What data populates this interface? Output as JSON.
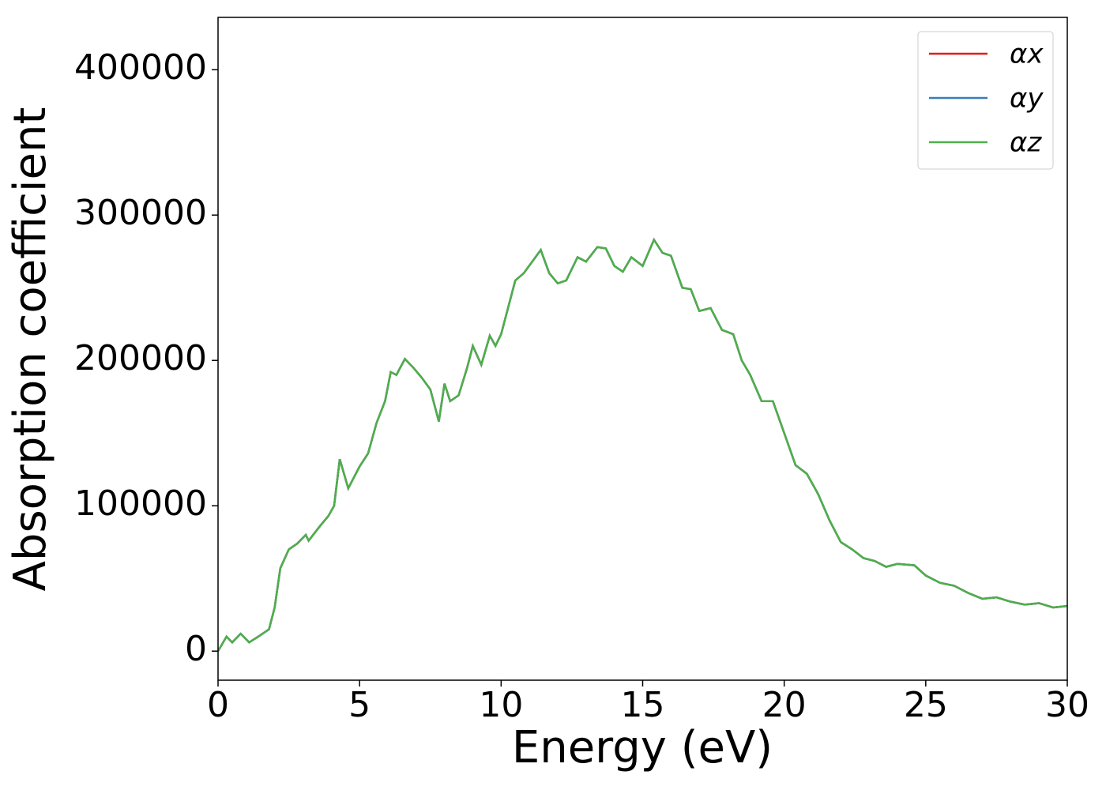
{
  "chart_data": {
    "type": "line",
    "xlabel": "Energy (eV)",
    "ylabel": "Absorption coefficient",
    "x": [
      0,
      0.3,
      0.5,
      0.8,
      1.1,
      1.5,
      1.8,
      2.0,
      2.2,
      2.5,
      2.8,
      3.1,
      3.2,
      3.6,
      3.9,
      4.1,
      4.3,
      4.6,
      5.0,
      5.3,
      5.6,
      5.9,
      6.1,
      6.3,
      6.6,
      6.9,
      7.2,
      7.5,
      7.8,
      8.0,
      8.2,
      8.5,
      8.8,
      9.0,
      9.3,
      9.6,
      9.8,
      10.0,
      10.5,
      10.8,
      11.1,
      11.4,
      11.7,
      12.0,
      12.3,
      12.7,
      13.0,
      13.4,
      13.7,
      14.0,
      14.3,
      14.6,
      15.0,
      15.4,
      15.7,
      16.0,
      16.4,
      16.7,
      17.0,
      17.4,
      17.8,
      18.2,
      18.5,
      18.8,
      19.2,
      19.6,
      20.0,
      20.4,
      20.8,
      21.2,
      21.6,
      22.0,
      22.4,
      22.8,
      23.2,
      23.6,
      24.0,
      24.6,
      25.0,
      25.5,
      26.0,
      26.5,
      27.0,
      27.5,
      28.0,
      28.5,
      29.0,
      29.5,
      30.0
    ],
    "series": [
      {
        "name": "αx",
        "color": "#e41a1c",
        "values": [
          0,
          10000,
          6000,
          12000,
          6000,
          11000,
          15000,
          30000,
          57000,
          70000,
          74000,
          80000,
          76000,
          86000,
          93000,
          100000,
          132000,
          112000,
          127000,
          136000,
          157000,
          172000,
          192000,
          190000,
          201000,
          195000,
          188000,
          180000,
          158000,
          184000,
          172000,
          176000,
          195000,
          210000,
          197000,
          217000,
          210000,
          218000,
          255000,
          260000,
          268000,
          276000,
          260000,
          253000,
          255000,
          271000,
          268000,
          278000,
          277000,
          265000,
          261000,
          271000,
          265000,
          283000,
          274000,
          272000,
          250000,
          249000,
          234000,
          236000,
          221000,
          218000,
          200000,
          190000,
          172000,
          172000,
          150000,
          128000,
          122000,
          108000,
          90000,
          75000,
          70000,
          64000,
          62000,
          58000,
          60000,
          59000,
          52000,
          47000,
          45000,
          40000,
          36000,
          37000,
          34000,
          32000,
          33000,
          30000,
          31000
        ]
      },
      {
        "name": "αy",
        "color": "#377eb8",
        "values": [
          0,
          10000,
          6000,
          12000,
          6000,
          11000,
          15000,
          30000,
          57000,
          70000,
          74000,
          80000,
          76000,
          86000,
          93000,
          100000,
          132000,
          112000,
          127000,
          136000,
          157000,
          172000,
          192000,
          190000,
          201000,
          195000,
          188000,
          180000,
          158000,
          184000,
          172000,
          176000,
          195000,
          210000,
          197000,
          217000,
          210000,
          218000,
          255000,
          260000,
          268000,
          276000,
          260000,
          253000,
          255000,
          271000,
          268000,
          278000,
          277000,
          265000,
          261000,
          271000,
          265000,
          283000,
          274000,
          272000,
          250000,
          249000,
          234000,
          236000,
          221000,
          218000,
          200000,
          190000,
          172000,
          172000,
          150000,
          128000,
          122000,
          108000,
          90000,
          75000,
          70000,
          64000,
          62000,
          58000,
          60000,
          59000,
          52000,
          47000,
          45000,
          40000,
          36000,
          37000,
          34000,
          32000,
          33000,
          30000,
          31000
        ]
      },
      {
        "name": "αz",
        "color": "#4daf4a",
        "values": [
          0,
          10000,
          6000,
          12000,
          6000,
          11000,
          15000,
          30000,
          57000,
          70000,
          74000,
          80000,
          76000,
          86000,
          93000,
          100000,
          132000,
          112000,
          127000,
          136000,
          157000,
          172000,
          192000,
          190000,
          201000,
          195000,
          188000,
          180000,
          158000,
          184000,
          172000,
          176000,
          195000,
          210000,
          197000,
          217000,
          210000,
          218000,
          255000,
          260000,
          268000,
          276000,
          260000,
          253000,
          255000,
          271000,
          268000,
          278000,
          277000,
          265000,
          261000,
          271000,
          265000,
          283000,
          274000,
          272000,
          250000,
          249000,
          234000,
          236000,
          221000,
          218000,
          200000,
          190000,
          172000,
          172000,
          150000,
          128000,
          122000,
          108000,
          90000,
          75000,
          70000,
          64000,
          62000,
          58000,
          60000,
          59000,
          52000,
          47000,
          45000,
          40000,
          36000,
          37000,
          34000,
          32000,
          33000,
          30000,
          31000
        ]
      }
    ],
    "xlim": [
      0,
      30
    ],
    "xticks": [
      0,
      5,
      10,
      15,
      20,
      25,
      30
    ],
    "ylim": [
      -20000,
      436000
    ],
    "yticks": [
      0,
      100000,
      200000,
      300000,
      400000
    ],
    "legend": "upper right"
  }
}
